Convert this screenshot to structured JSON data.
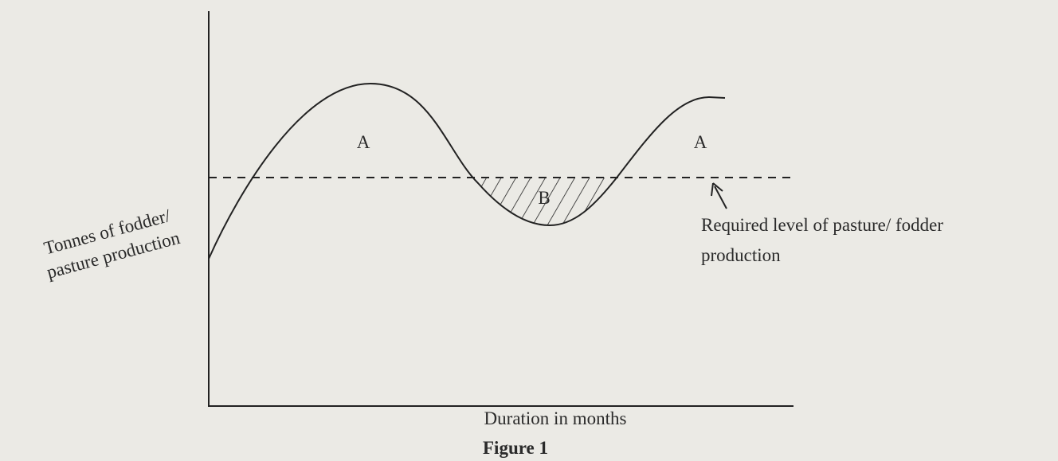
{
  "axes": {
    "y_label": [
      "Tonnes of fodder/",
      "pasture production"
    ],
    "x_label": "Duration in months"
  },
  "regions": [
    {
      "label": "A"
    },
    {
      "label": "B"
    },
    {
      "label": "A"
    }
  ],
  "annotation": {
    "lines": [
      "Required level of pasture/ fodder",
      "production"
    ]
  },
  "caption": "Figure 1"
}
